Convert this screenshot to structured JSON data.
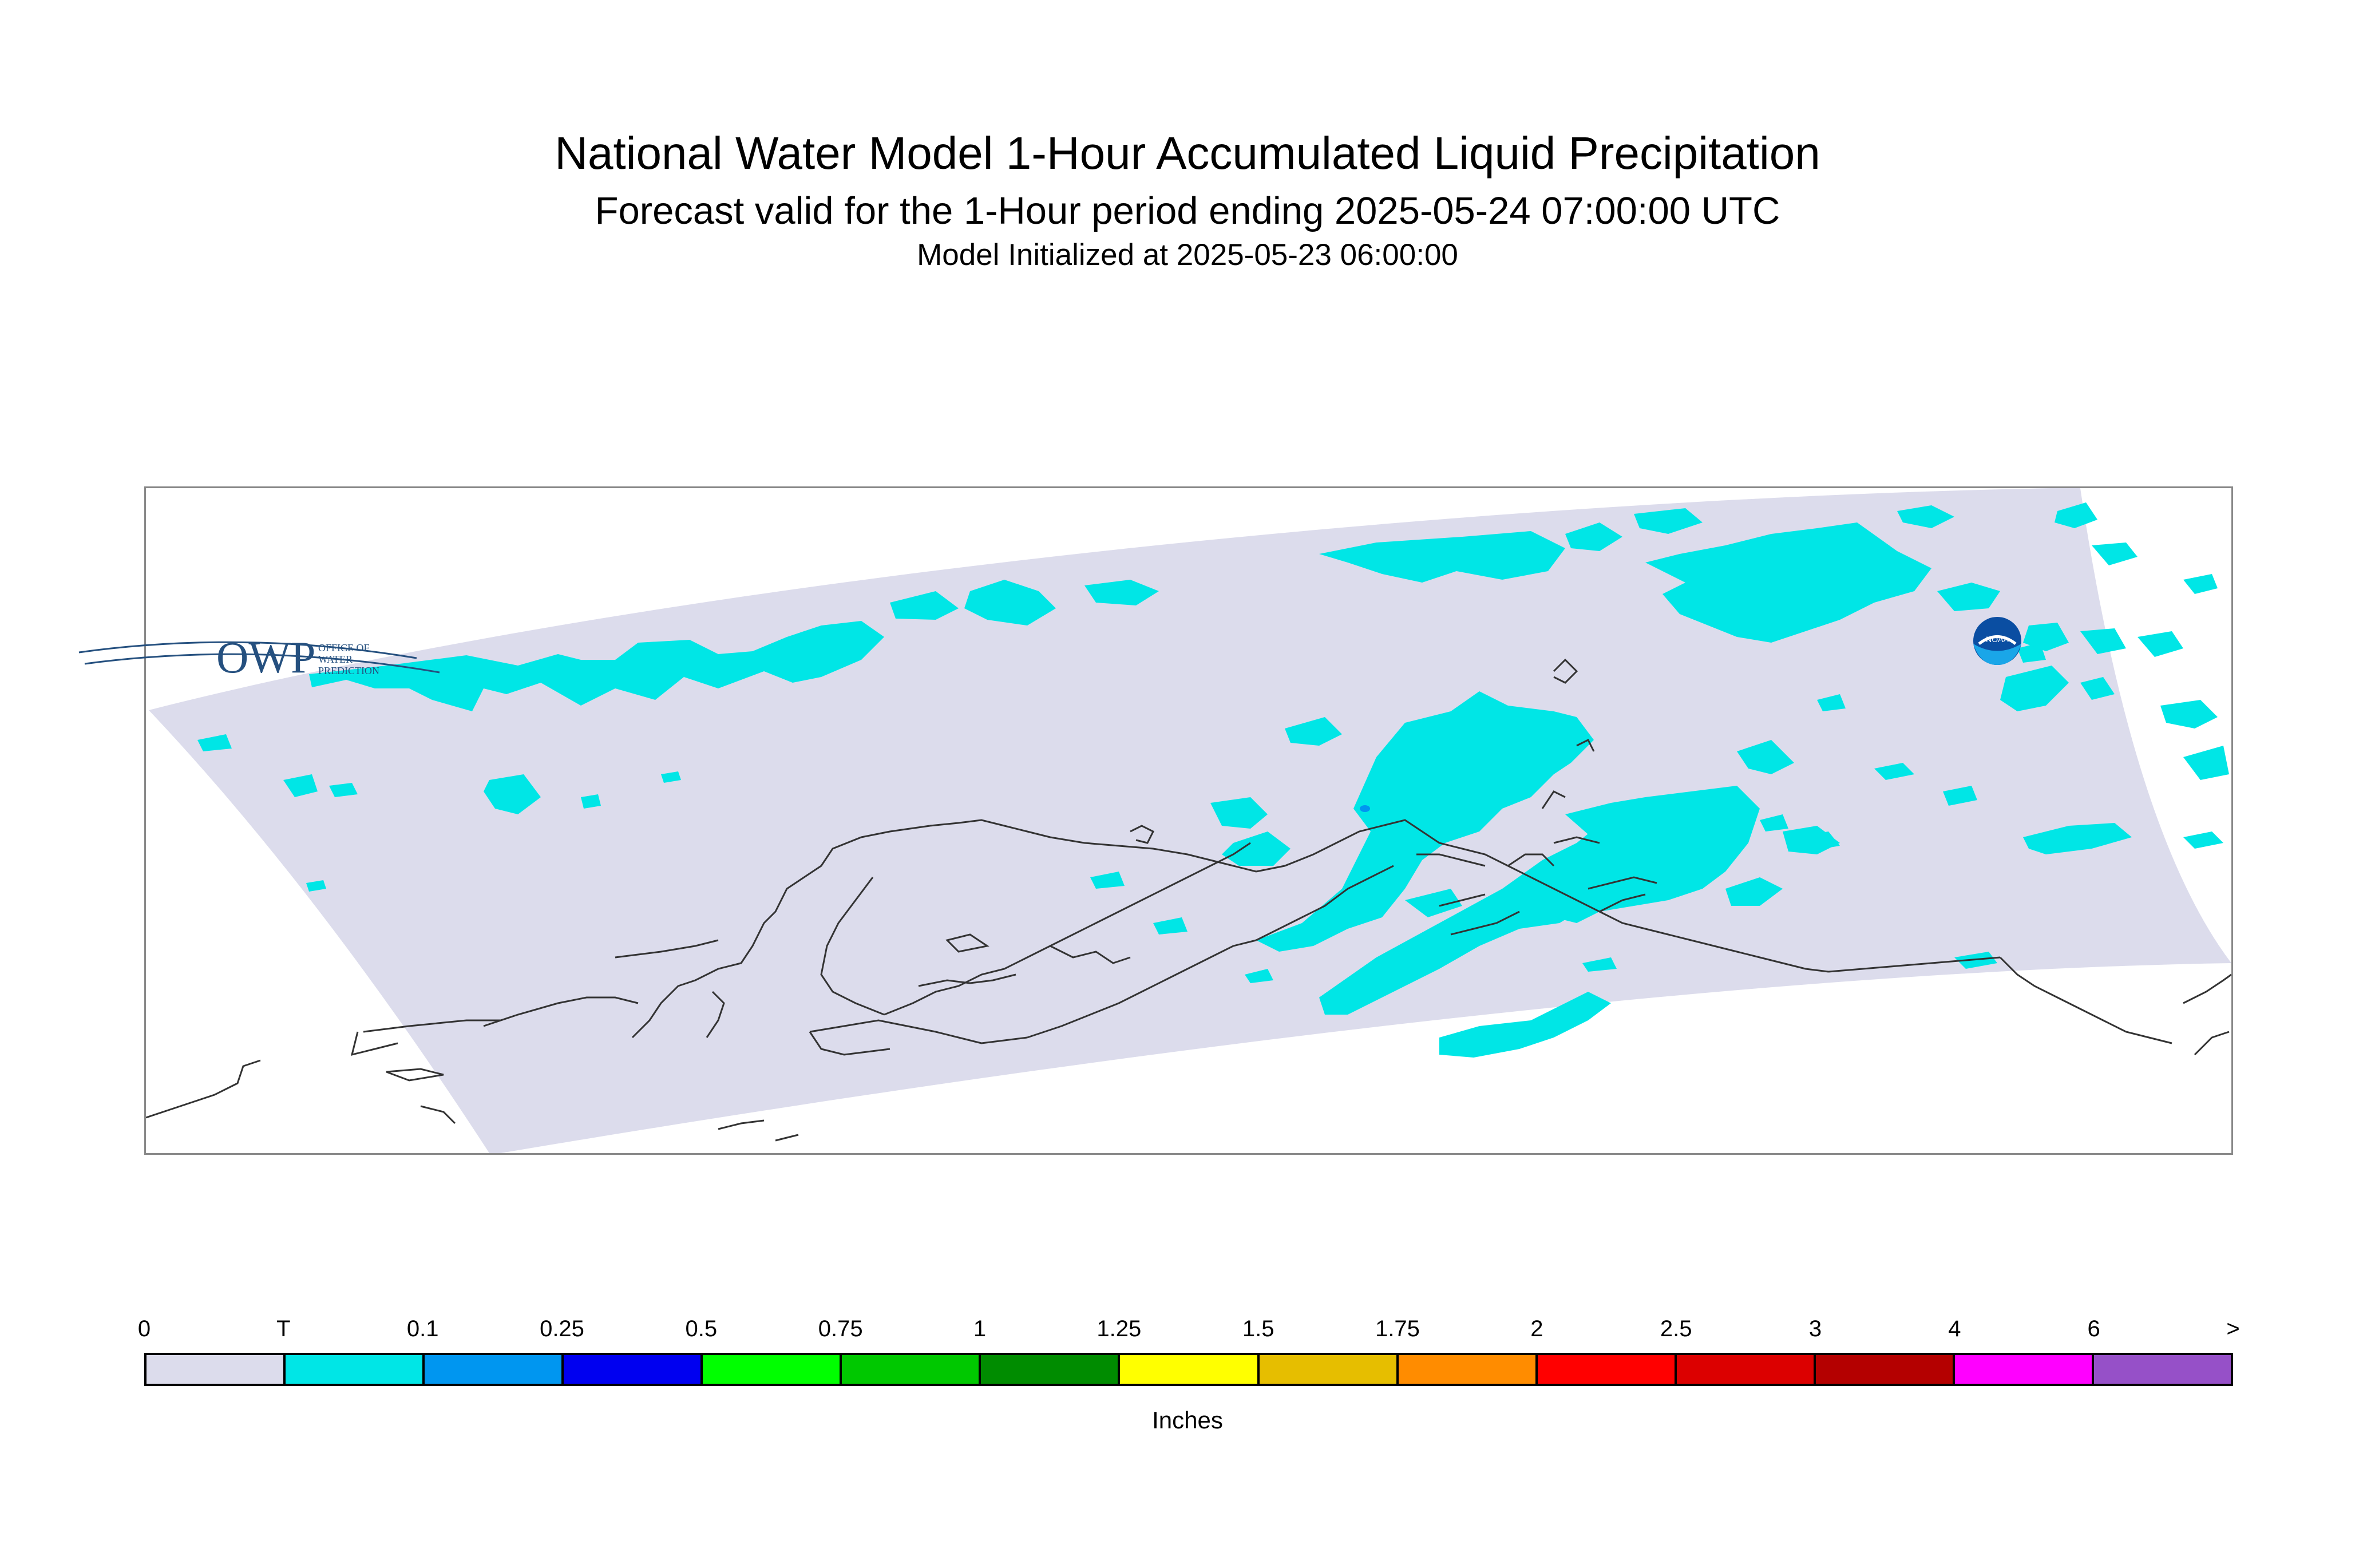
{
  "title": "National Water Model 1-Hour Accumulated Liquid Precipitation",
  "subtitle": "Forecast valid for the 1-Hour period ending 2025-05-24 07:00:00 UTC",
  "init_line": "Model Initialized at 2025-05-23 06:00:00",
  "logos": {
    "owp_mark": "OWP",
    "owp_lines": [
      "OFFICE OF",
      "WATER",
      "PREDICTION"
    ],
    "noaa_mark": "NOAA"
  },
  "legend": {
    "units": "Inches",
    "labels": [
      "0",
      "T",
      "0.1",
      "0.25",
      "0.5",
      "0.75",
      "1",
      "1.25",
      "1.5",
      "1.75",
      "2",
      "2.5",
      "3",
      "4",
      "6",
      ">"
    ],
    "colors": [
      "#dcdcec",
      "#00e6e6",
      "#0096f0",
      "#0000f0",
      "#00ff00",
      "#00c800",
      "#008c00",
      "#ffff00",
      "#e6be00",
      "#ff8c00",
      "#ff0000",
      "#dc0000",
      "#b40000",
      "#ff00ff",
      "#9650c8"
    ]
  },
  "colors": {
    "domain_fill": "#dcdcec",
    "trace_fill": "#00e6e6",
    "light_fill": "#0096f0",
    "coastline": "#333333"
  }
}
